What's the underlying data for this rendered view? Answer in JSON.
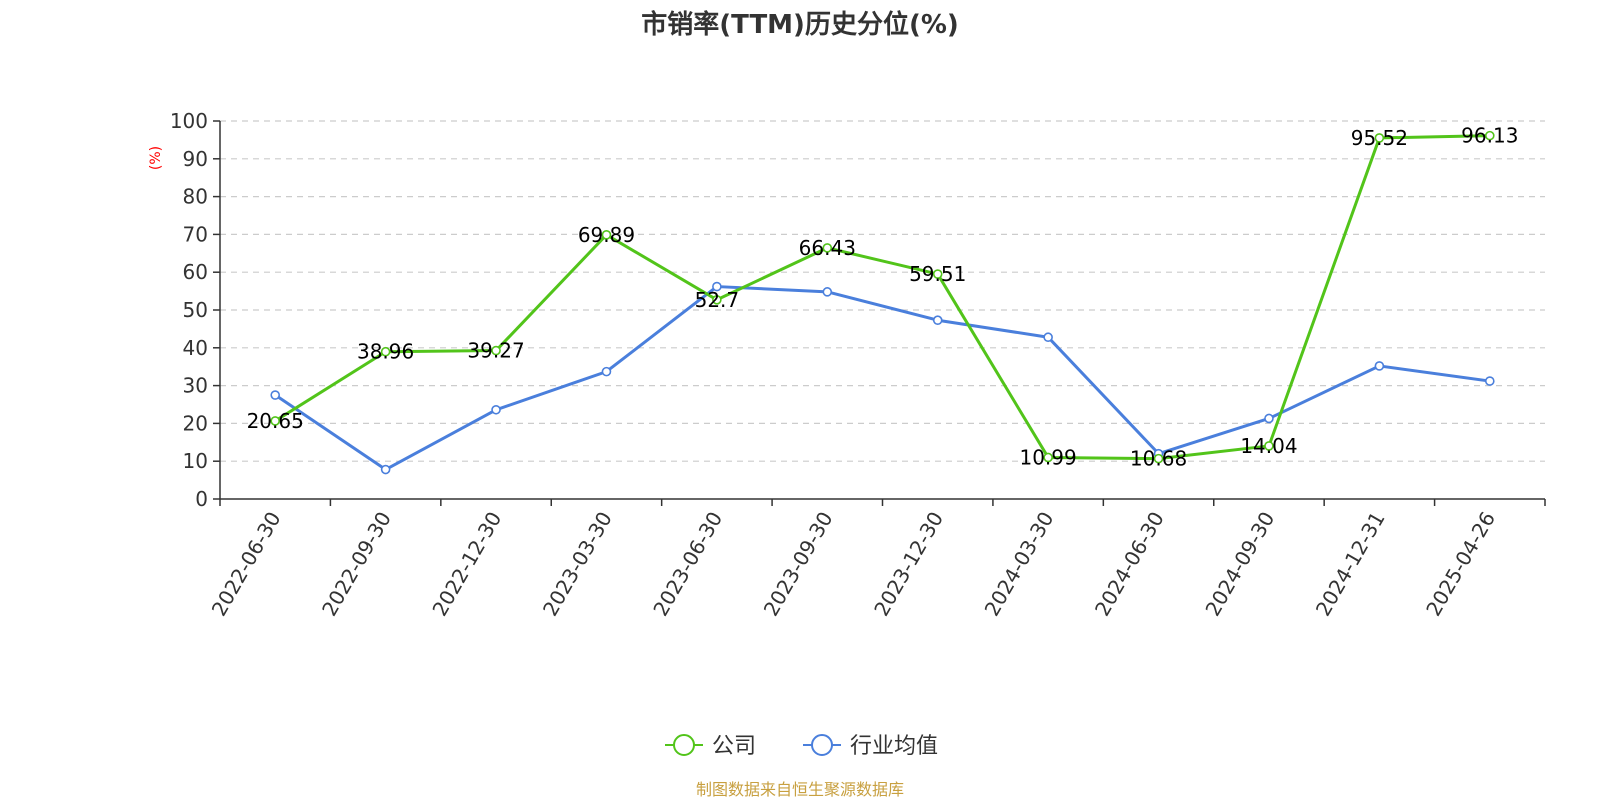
{
  "chart_data": {
    "type": "line",
    "title": "市销率(TTM)历史分位(%)",
    "ylabel": "(%)",
    "xlabel": "",
    "ylim": [
      0,
      100
    ],
    "yticks": [
      0,
      10,
      20,
      30,
      40,
      50,
      60,
      70,
      80,
      90,
      100
    ],
    "grid": true,
    "legend_position": "bottom",
    "categories": [
      "2022-06-30",
      "2022-09-30",
      "2022-12-30",
      "2023-03-30",
      "2023-06-30",
      "2023-09-30",
      "2023-12-30",
      "2024-03-30",
      "2024-06-30",
      "2024-09-30",
      "2024-12-31",
      "2025-04-26"
    ],
    "series": [
      {
        "name": "公司",
        "color": "#52c41a",
        "values": [
          20.65,
          38.96,
          39.27,
          69.89,
          52.7,
          66.43,
          59.51,
          10.99,
          10.68,
          14.04,
          95.52,
          96.13
        ],
        "labels": [
          "20.65",
          "38.96",
          "39.27",
          "69.89",
          "52.7",
          "66.43",
          "59.51",
          "10.99",
          "10.68",
          "14.04",
          "95.52",
          "96.13"
        ]
      },
      {
        "name": "行业均值",
        "color": "#4a7fdc",
        "values": [
          27.5,
          7.8,
          23.6,
          33.7,
          56.2,
          54.8,
          47.3,
          42.8,
          12.0,
          21.3,
          35.2,
          31.2
        ]
      }
    ],
    "source": "制图数据来自恒生聚源数据库",
    "source_color": "#c8a040",
    "ylabel_color": "#ff0000"
  }
}
